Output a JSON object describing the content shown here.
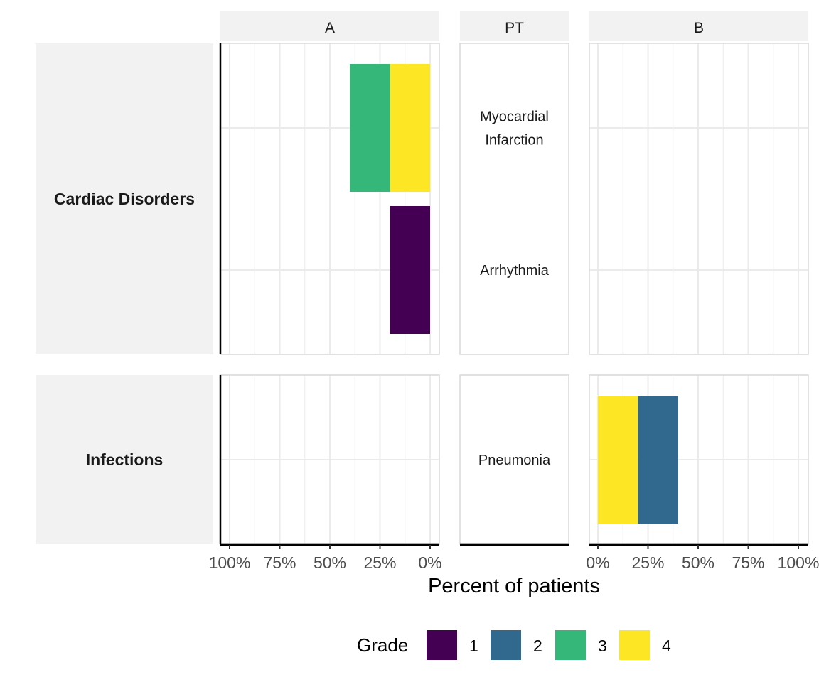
{
  "chart_data": {
    "type": "bar",
    "orientation": "horizontal",
    "stacked": true,
    "title": "",
    "xlabel": "Percent of patients",
    "ylabel": "",
    "xlim": [
      0,
      100
    ],
    "x_tick_labels_left": [
      "100%",
      "75%",
      "50%",
      "25%",
      "0%"
    ],
    "x_tick_labels_right": [
      "0%",
      "25%",
      "50%",
      "75%",
      "100%"
    ],
    "x_ticks": [
      0,
      25,
      50,
      75,
      100
    ],
    "grid": true,
    "facets": {
      "columns": [
        "A",
        "PT",
        "B"
      ],
      "rows": [
        "Cardiac Disorders",
        "Infections"
      ]
    },
    "row_terms": [
      {
        "soc": "Cardiac Disorders",
        "terms": [
          "Myocardial Infarction",
          "Arrhythmia"
        ]
      },
      {
        "soc": "Infections",
        "terms": [
          "Pneumonia"
        ]
      }
    ],
    "pt_labels": [
      {
        "term": "Myocardial Infarction",
        "lines": [
          "Myocardial",
          "Infarction"
        ]
      },
      {
        "term": "Arrhythmia",
        "lines": [
          "Arrhythmia"
        ]
      },
      {
        "term": "Pneumonia",
        "lines": [
          "Pneumonia"
        ]
      }
    ],
    "series": [
      {
        "arm": "A",
        "term": "Myocardial Infarction",
        "segments": [
          {
            "grade": "4",
            "value": 20
          },
          {
            "grade": "3",
            "value": 20
          }
        ]
      },
      {
        "arm": "A",
        "term": "Arrhythmia",
        "segments": [
          {
            "grade": "1",
            "value": 20
          }
        ]
      },
      {
        "arm": "A",
        "term": "Pneumonia",
        "segments": []
      },
      {
        "arm": "B",
        "term": "Myocardial Infarction",
        "segments": []
      },
      {
        "arm": "B",
        "term": "Arrhythmia",
        "segments": []
      },
      {
        "arm": "B",
        "term": "Pneumonia",
        "segments": [
          {
            "grade": "4",
            "value": 20
          },
          {
            "grade": "2",
            "value": 20
          }
        ]
      }
    ],
    "legend": {
      "title": "Grade",
      "position": "bottom",
      "items": [
        {
          "label": "1",
          "color": "#440154"
        },
        {
          "label": "2",
          "color": "#31688E"
        },
        {
          "label": "3",
          "color": "#35B779"
        },
        {
          "label": "4",
          "color": "#FDE725"
        }
      ]
    }
  }
}
